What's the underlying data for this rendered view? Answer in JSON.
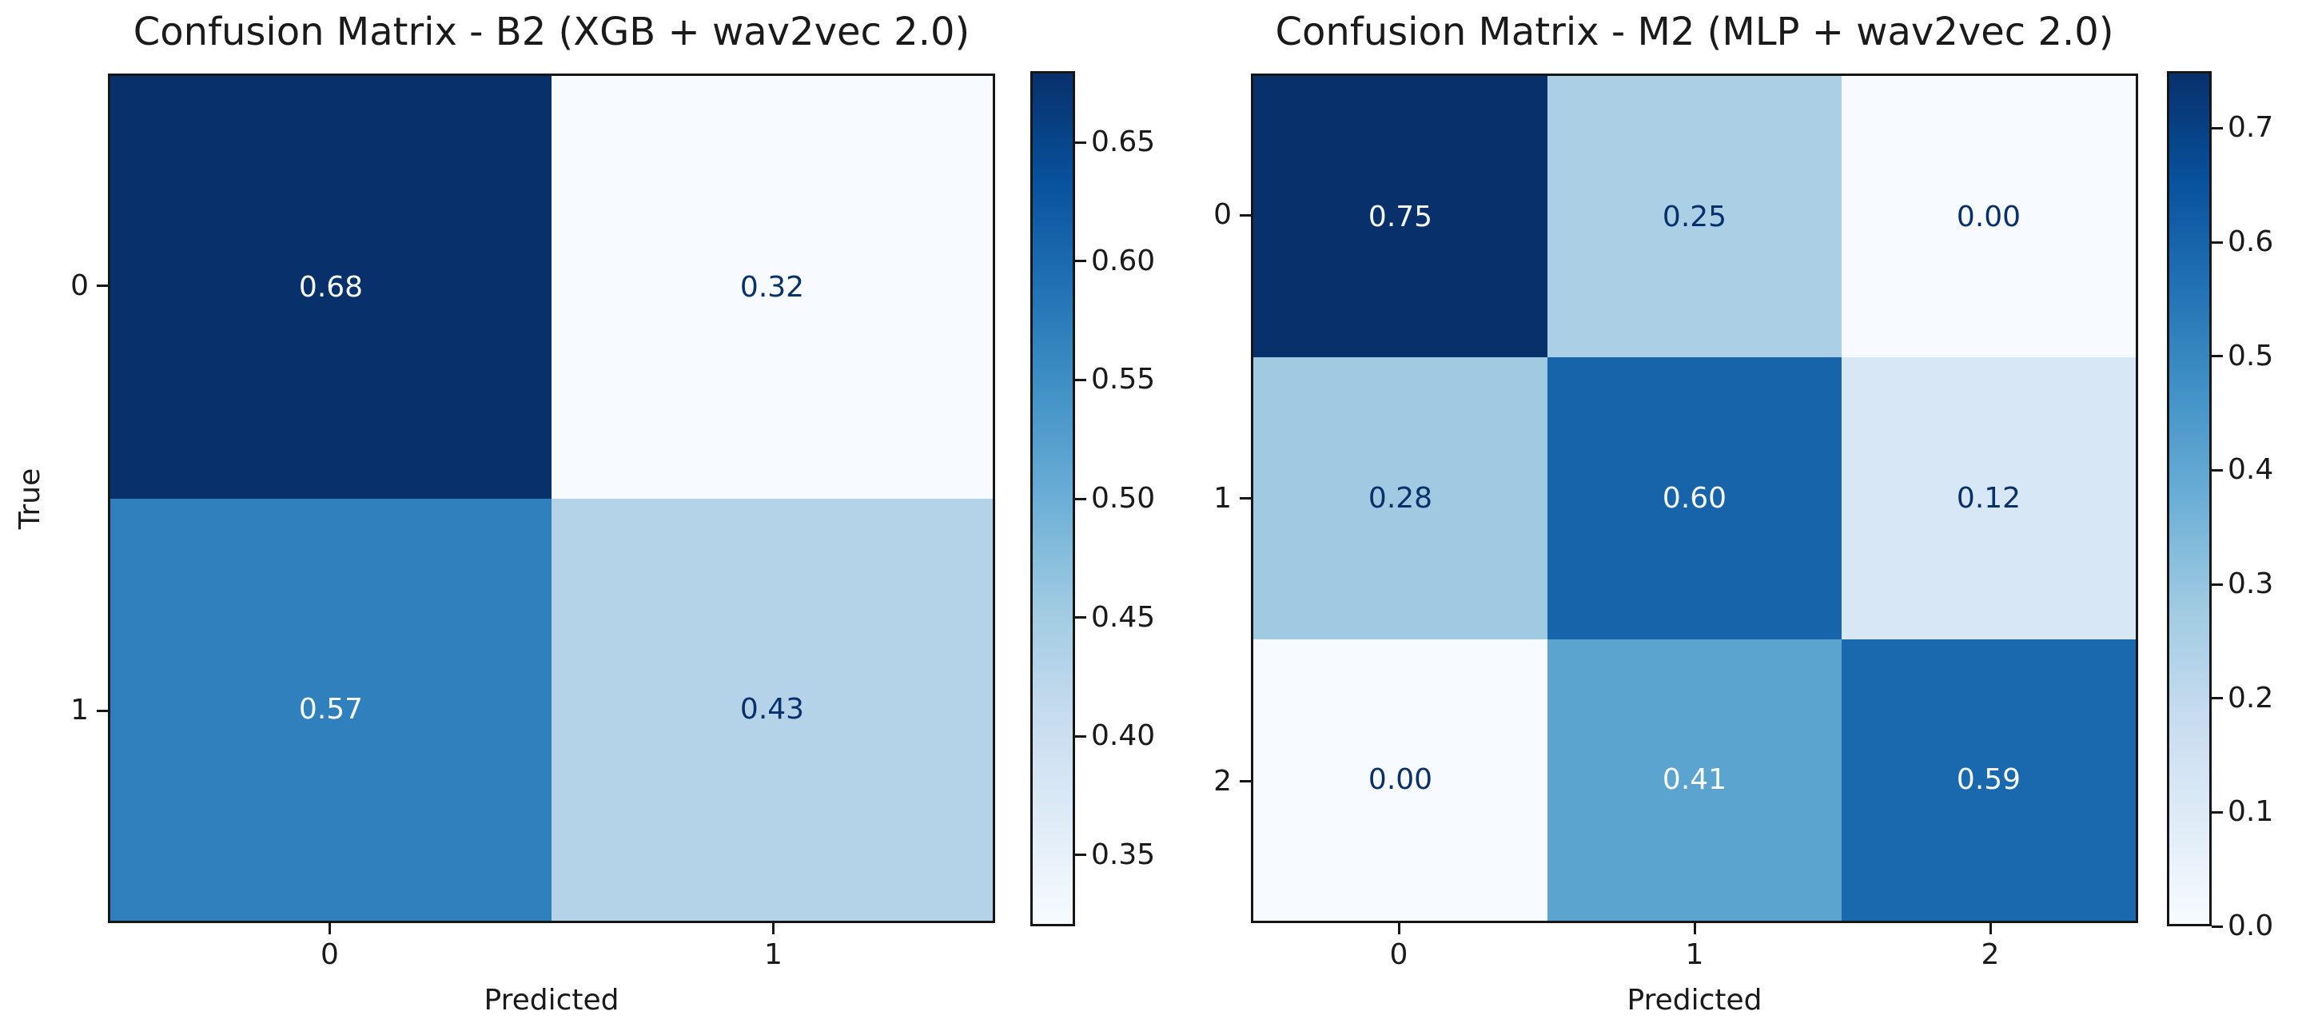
{
  "figure": {
    "background": "#ffffff",
    "text_color": "#1a1a1a",
    "annotation_text_colors": {
      "light": "#f7fbff",
      "dark": "#08306b"
    },
    "colormap": {
      "name": "Blues",
      "stops": [
        "#f7fbff",
        "#deebf7",
        "#c6dbef",
        "#9ecae1",
        "#6baed6",
        "#4292c6",
        "#2171b5",
        "#08519c",
        "#08306b"
      ]
    }
  },
  "chart_data": [
    {
      "type": "heatmap",
      "title": "Confusion Matrix - B2 (XGB + wav2vec 2.0)",
      "xlabel": "Predicted",
      "ylabel": "True",
      "x_tick_labels": [
        "0",
        "1"
      ],
      "y_tick_labels": [
        "0",
        "1"
      ],
      "values": [
        [
          0.68,
          0.32
        ],
        [
          0.57,
          0.43
        ]
      ],
      "cell_labels": [
        [
          "0.68",
          "0.32"
        ],
        [
          "0.57",
          "0.43"
        ]
      ],
      "colormap": "Blues",
      "vmin": 0.32,
      "vmax": 0.68,
      "colorbar_ticks": [
        "0.65",
        "0.60",
        "0.55",
        "0.50",
        "0.45",
        "0.40",
        "0.35"
      ],
      "colorbar_position": "right",
      "grid": false
    },
    {
      "type": "heatmap",
      "title": "Confusion Matrix - M2 (MLP + wav2vec 2.0)",
      "xlabel": "Predicted",
      "ylabel": "",
      "x_tick_labels": [
        "0",
        "1",
        "2"
      ],
      "y_tick_labels": [
        "0",
        "1",
        "2"
      ],
      "values": [
        [
          0.75,
          0.25,
          0.0
        ],
        [
          0.28,
          0.6,
          0.12
        ],
        [
          0.0,
          0.41,
          0.59
        ]
      ],
      "cell_labels": [
        [
          "0.75",
          "0.25",
          "0.00"
        ],
        [
          "0.28",
          "0.60",
          "0.12"
        ],
        [
          "0.00",
          "0.41",
          "0.59"
        ]
      ],
      "colormap": "Blues",
      "vmin": 0.0,
      "vmax": 0.75,
      "colorbar_ticks": [
        "0.7",
        "0.6",
        "0.5",
        "0.4",
        "0.3",
        "0.2",
        "0.1",
        "0.0"
      ],
      "colorbar_position": "right",
      "grid": false
    }
  ]
}
